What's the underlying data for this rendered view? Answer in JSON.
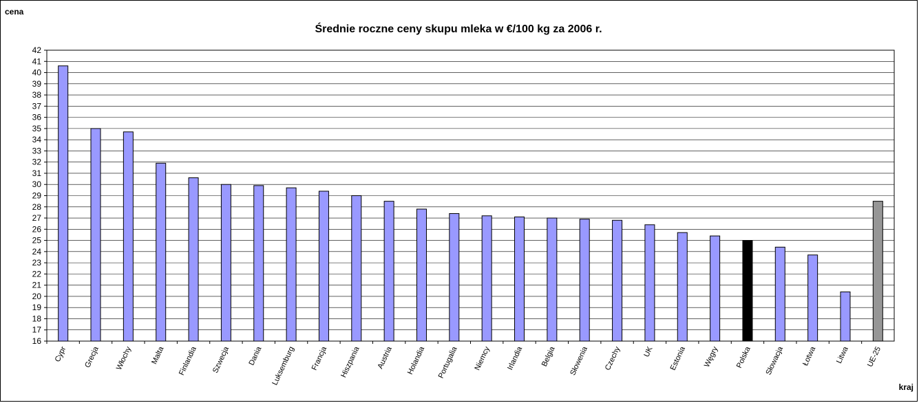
{
  "chart_data": {
    "type": "bar",
    "title": "Średnie roczne ceny skupu mleka w €/100 kg za 2006 r.",
    "ylabel": "cena",
    "xlabel": "kraj",
    "ylim": [
      16,
      42
    ],
    "ytick_step": 1,
    "grid": true,
    "legend": "none",
    "categories": [
      "Cypr",
      "Grecja",
      "Włochy",
      "Malta",
      "Finlandia",
      "Szwecja",
      "Dania",
      "Luksemburg",
      "Francja",
      "Hiszpania",
      "Austria",
      "Holandia",
      "Portugalia",
      "Niemcy",
      "Irlandia",
      "Belgia",
      "Słowenia",
      "Czechy",
      "UK",
      "Estonia",
      "Węgry",
      "Polska",
      "Słowacja",
      "Łotwa",
      "Litwa",
      "UE-25"
    ],
    "values": [
      40.6,
      35.0,
      34.7,
      31.9,
      30.6,
      30.0,
      29.9,
      29.7,
      29.4,
      29.0,
      28.5,
      27.8,
      27.4,
      27.2,
      27.1,
      27.0,
      26.9,
      26.8,
      26.4,
      25.7,
      25.4,
      25.0,
      24.4,
      23.7,
      20.4,
      28.5
    ],
    "colors": {
      "default": "#9999ff",
      "Polska": "#000000",
      "UE-25": "#969696",
      "bar_stroke": "#000000",
      "grid": "#000000"
    }
  }
}
